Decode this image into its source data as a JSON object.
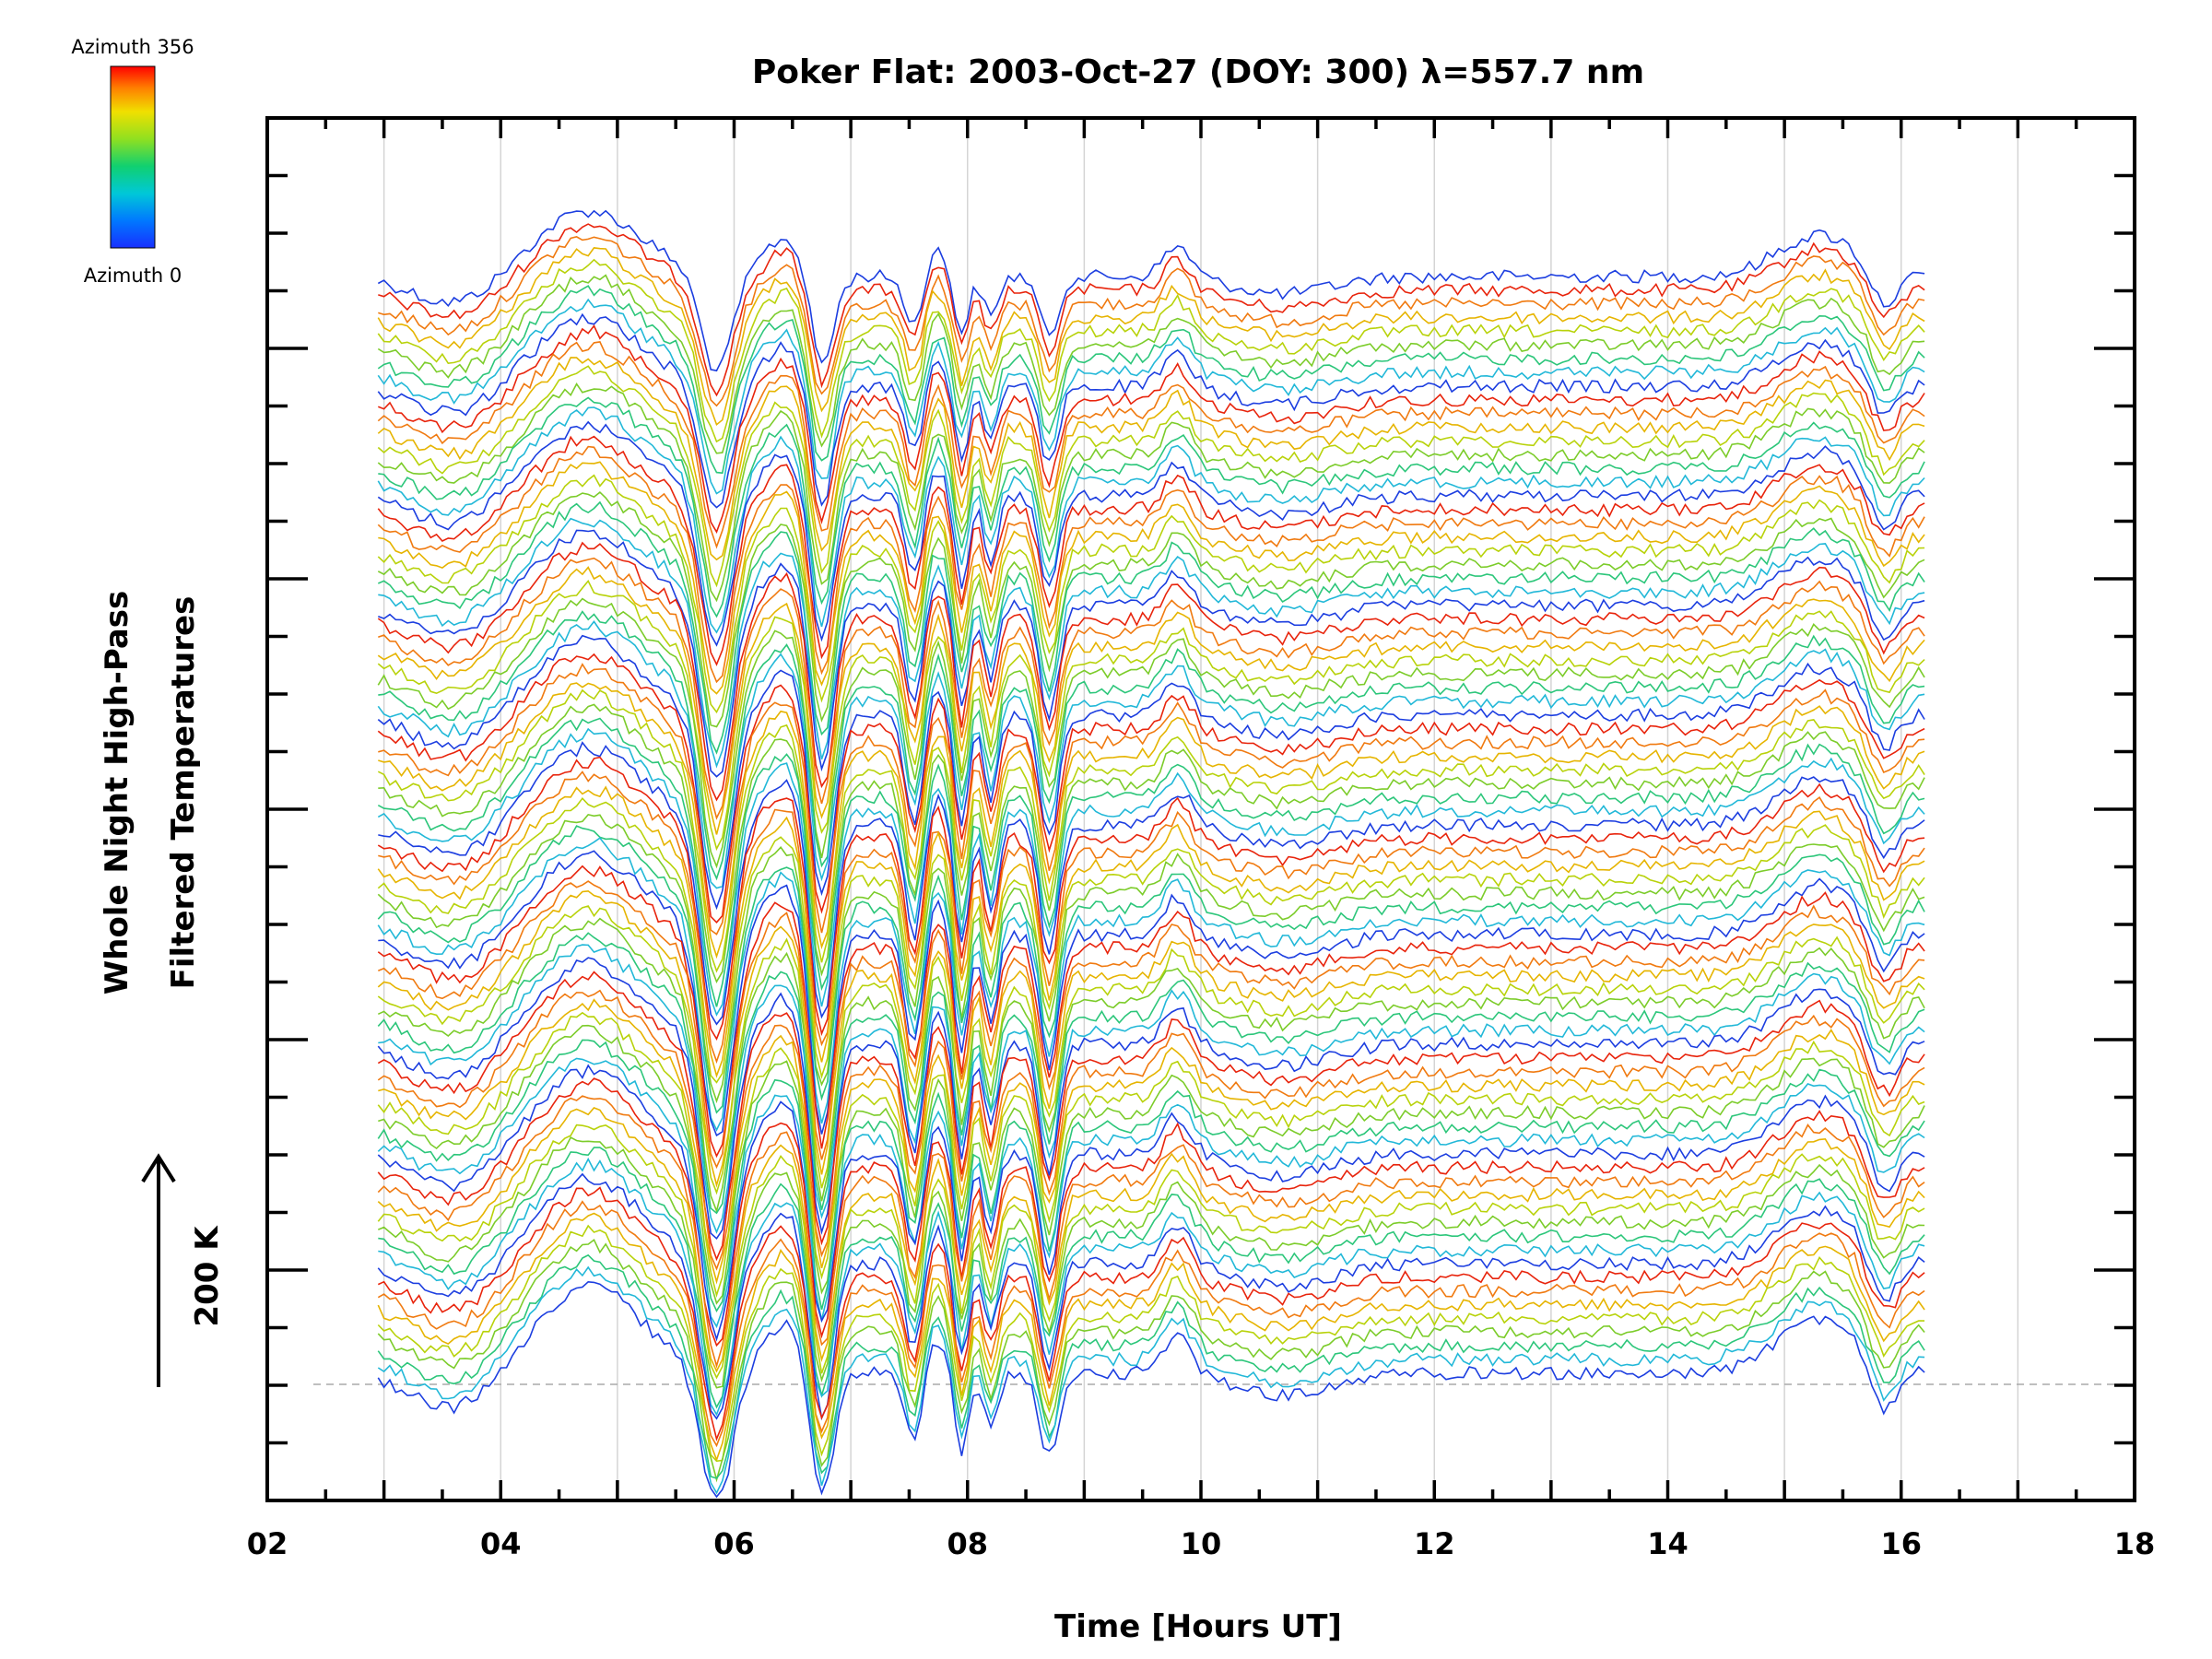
{
  "chart_data": {
    "type": "line",
    "title": "Poker Flat: 2003-Oct-27 (DOY: 300) λ=557.7 nm",
    "xlabel": "Time [Hours UT]",
    "ylabel_line1": "Whole Night High-Pass",
    "ylabel_line2": "Filtered Temperatures",
    "scale_label": "200 K",
    "xlim": [
      2,
      18
    ],
    "x_ticks": [
      "02",
      "04",
      "06",
      "08",
      "10",
      "12",
      "14",
      "16",
      "18"
    ],
    "x_gridlines": [
      3,
      4,
      5,
      6,
      7,
      8,
      9,
      10,
      11,
      12,
      13,
      14,
      15,
      16,
      17
    ],
    "grid": "vertical",
    "data_range_hours": [
      2.95,
      16.2
    ],
    "colorbar": {
      "top_label": "Azimuth 356",
      "bottom_label": "Azimuth 0",
      "colors": [
        "#ff0000",
        "#ff8c00",
        "#e6e600",
        "#7fd400",
        "#00c878",
        "#00bfe0",
        "#0050ff",
        "#1020c0"
      ],
      "placement": "top-left"
    },
    "series_count": 81,
    "series_note_color_cycle": [
      "#1c3ee0",
      "#e8240c",
      "#f07a10",
      "#e6b400",
      "#b8d20a",
      "#7ccc2a",
      "#2cc67a",
      "#22b8d8"
    ]
  }
}
